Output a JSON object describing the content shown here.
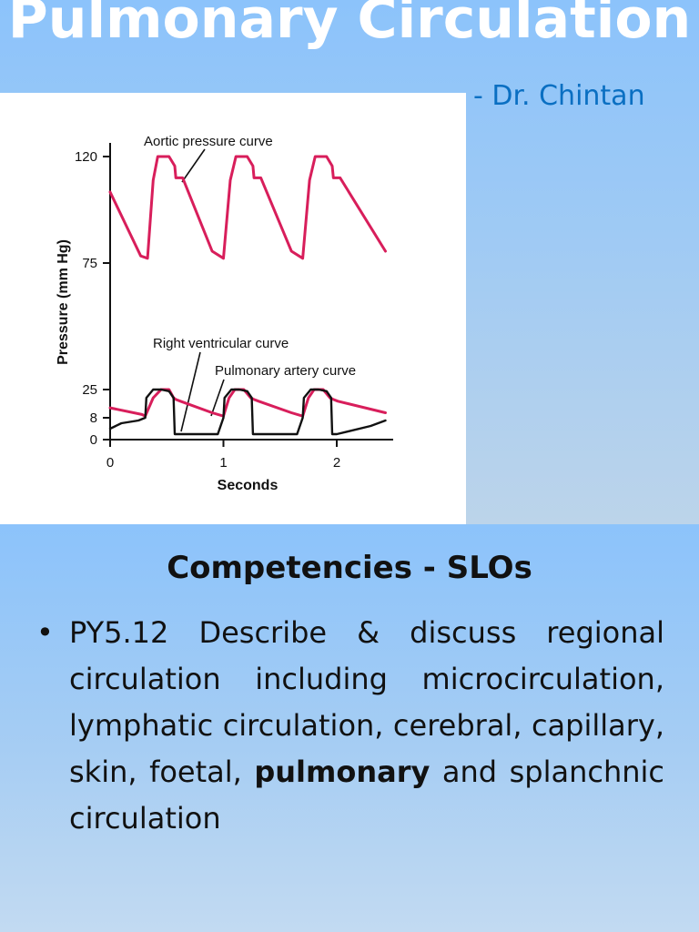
{
  "slide": {
    "title": "Pulmonary Circulation",
    "author": "- Dr. Chintan"
  },
  "figure": {
    "annotations": {
      "aortic": "Aortic pressure curve",
      "rv": "Right ventricular curve",
      "pa": "Pulmonary artery curve"
    }
  },
  "chart_data": {
    "type": "line",
    "xlabel": "Seconds",
    "ylabel": "Pressure (mm Hg)",
    "xlim": [
      0,
      2.5
    ],
    "ylim": [
      0,
      130
    ],
    "x_ticks": [
      0,
      1,
      2
    ],
    "y_ticks": [
      0,
      8,
      25,
      75,
      120
    ],
    "series": [
      {
        "name": "Aortic pressure curve",
        "color": "#d81e5b",
        "x": [
          0,
          0.27,
          0.33,
          0.38,
          0.42,
          0.52,
          0.57,
          0.58,
          0.64,
          0.9,
          1.0,
          1.06,
          1.11,
          1.21,
          1.26,
          1.27,
          1.33,
          1.6,
          1.7,
          1.76,
          1.81,
          1.91,
          1.96,
          1.97,
          2.03,
          2.43
        ],
        "y": [
          105,
          78,
          77,
          110,
          120,
          120,
          116,
          111,
          111,
          80,
          77,
          110,
          120,
          120,
          116,
          111,
          111,
          80,
          77,
          110,
          120,
          120,
          116,
          111,
          111,
          80
        ]
      },
      {
        "name": "Pulmonary artery curve",
        "color": "#d81e5b",
        "x": [
          0,
          0.28,
          0.31,
          0.38,
          0.45,
          0.52,
          0.56,
          0.58,
          0.62,
          0.9,
          1.0,
          1.05,
          1.1,
          1.18,
          1.24,
          1.27,
          1.31,
          1.6,
          1.7,
          1.75,
          1.8,
          1.88,
          1.94,
          1.97,
          2.01,
          2.43
        ],
        "y": [
          14,
          10,
          9,
          20,
          25,
          25,
          20,
          19,
          18,
          11,
          9,
          20,
          25,
          25,
          20,
          19,
          18,
          11,
          9,
          20,
          25,
          25,
          20,
          19,
          18,
          11
        ]
      },
      {
        "name": "Right ventricular curve",
        "color": "#111111",
        "x": [
          0,
          0.1,
          0.25,
          0.31,
          0.32,
          0.38,
          0.45,
          0.52,
          0.56,
          0.57,
          0.6,
          0.95,
          1.0,
          1.01,
          1.07,
          1.14,
          1.21,
          1.25,
          1.26,
          1.3,
          1.65,
          1.7,
          1.71,
          1.77,
          1.84,
          1.91,
          1.95,
          1.96,
          2.0,
          2.3,
          2.43
        ],
        "y": [
          4,
          6,
          7,
          8,
          20,
          25,
          25,
          24,
          20,
          2,
          2,
          2,
          8,
          20,
          25,
          25,
          24,
          20,
          2,
          2,
          2,
          8,
          20,
          25,
          25,
          24,
          20,
          2,
          2,
          5,
          7
        ]
      }
    ]
  },
  "slos": {
    "heading": "Competencies - SLOs",
    "bullet": "•",
    "item_intro": "PY5.12 Describe & discuss regional circulation including microcirculation, lymphatic circulation, cerebral, capillary, skin, foetal,",
    "item_bold": "pulmonary",
    "item_outro": "and splanchnic circulation"
  }
}
